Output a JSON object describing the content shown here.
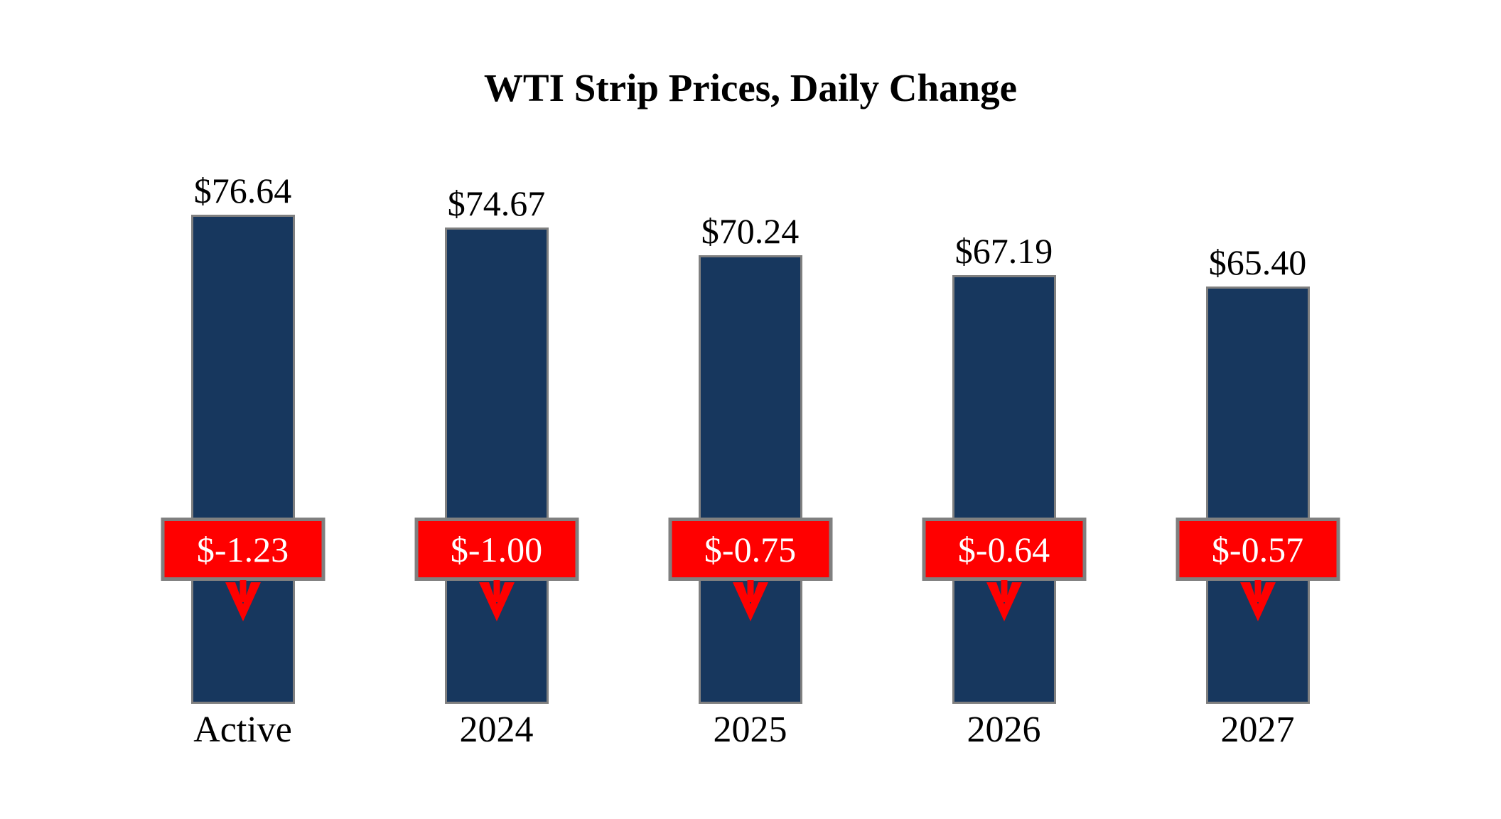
{
  "title": "WTI Strip Prices, Daily Change",
  "chart_data": {
    "type": "bar",
    "title": "WTI Strip Prices, Daily Change",
    "categories": [
      "Active",
      "2024",
      "2025",
      "2026",
      "2027"
    ],
    "values": [
      76.64,
      74.67,
      70.24,
      67.19,
      65.4
    ],
    "value_labels": [
      "$76.64",
      "$74.67",
      "$70.24",
      "$67.19",
      "$65.40"
    ],
    "daily_changes": [
      -1.23,
      -1.0,
      -0.75,
      -0.64,
      -0.57
    ],
    "change_labels": [
      "$-1.23",
      "$-1.00",
      "$-0.75",
      "$-0.64",
      "$-0.57"
    ],
    "xlabel": "",
    "ylabel": "",
    "ylim": [
      0,
      76.64
    ],
    "grid": false,
    "legend": false,
    "bar_color": "#17375E",
    "bar_border_color": "#808080",
    "change_badge_color": "#FF0000",
    "change_badge_border_color": "#808080",
    "change_text_color": "#FFFFFF",
    "arrow_color": "#FF0000",
    "arrow_direction": "down"
  }
}
